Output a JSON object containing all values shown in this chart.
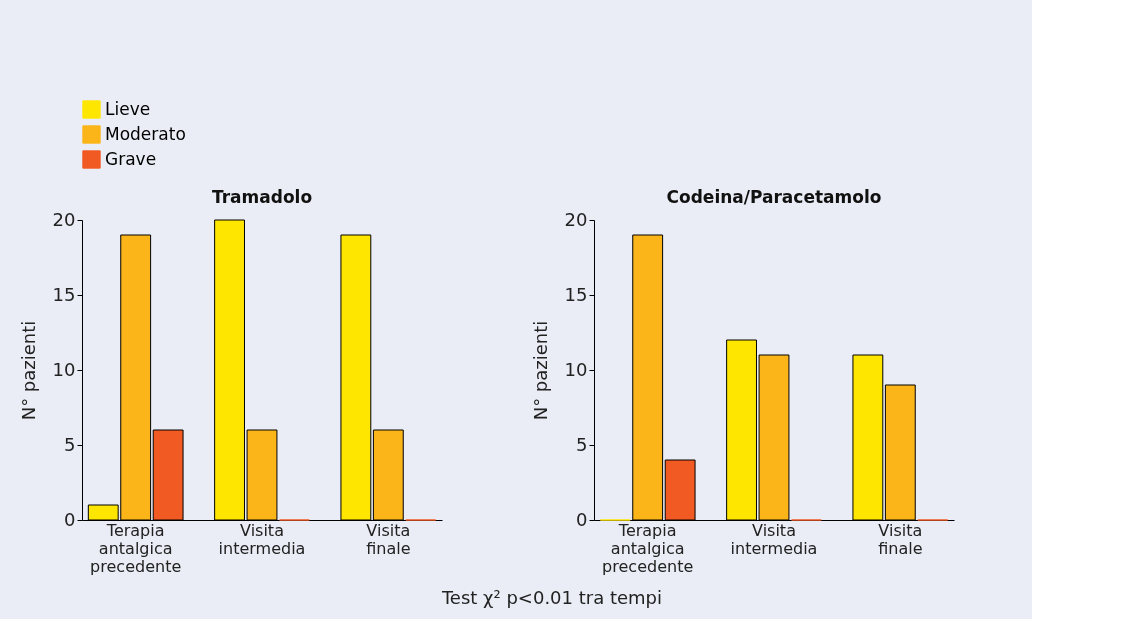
{
  "chart_data": [
    {
      "type": "bar",
      "title": "Tramadolo",
      "ylabel": "N° pazienti",
      "categories": [
        "Terapia antalgica precedente",
        "Visita intermedia",
        "Visita finale"
      ],
      "series": [
        {
          "name": "Lieve",
          "color": "#ffe600",
          "values": [
            1,
            20,
            19
          ]
        },
        {
          "name": "Moderato",
          "color": "#fbb519",
          "values": [
            19,
            6,
            6
          ]
        },
        {
          "name": "Grave",
          "color": "#f15a22",
          "values": [
            6,
            0,
            0
          ]
        }
      ],
      "ylim": [
        0,
        20
      ],
      "yticks": [
        0,
        5,
        10,
        15,
        20
      ],
      "grid": false,
      "legend": "top",
      "annotations": [
        "Test χ² p<0.01 tra tempi"
      ]
    },
    {
      "type": "bar",
      "title": "Codeina/Paracetamolo",
      "ylabel": "N° pazienti",
      "categories": [
        "Terapia antalgica precedente",
        "Visita intermedia",
        "Visita finale"
      ],
      "series": [
        {
          "name": "Lieve",
          "color": "#ffe600",
          "values": [
            0,
            12,
            11
          ]
        },
        {
          "name": "Moderato",
          "color": "#fbb519",
          "values": [
            19,
            11,
            9
          ]
        },
        {
          "name": "Grave",
          "color": "#f15a22",
          "values": [
            4,
            0,
            0
          ]
        }
      ],
      "ylim": [
        0,
        20
      ],
      "yticks": [
        0,
        5,
        10,
        15,
        20
      ],
      "grid": false,
      "legend": "top"
    }
  ]
}
